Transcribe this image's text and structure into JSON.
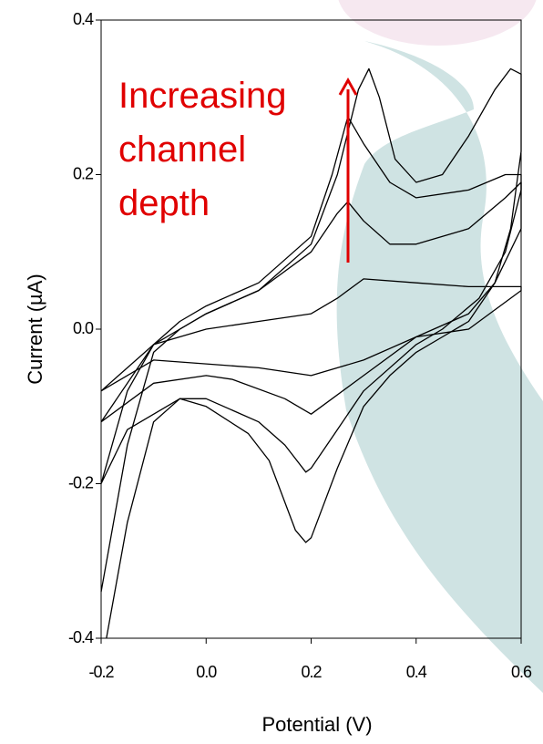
{
  "chart_data": {
    "type": "line",
    "xlabel": "Potential (V)",
    "ylabel": "Current (µA)",
    "annotation": [
      "Increasing",
      "channel",
      "depth"
    ],
    "xlim": [
      -0.2,
      0.6
    ],
    "ylim": [
      -0.4,
      0.4
    ],
    "xticks": [
      -0.2,
      {
        "value": 0,
        "label": "0.0"
      },
      0.2,
      0.4,
      0.6
    ],
    "yticks": [
      -0.4,
      -0.2,
      {
        "value": 0,
        "label": "0.0"
      },
      0.2,
      0.4
    ],
    "series": [
      {
        "color": "#000000",
        "x": [
          -0.2,
          -0.15,
          -0.1,
          -0.05,
          0.0,
          0.1,
          0.2,
          0.25,
          0.29,
          0.31,
          0.33,
          0.36,
          0.4,
          0.45,
          0.5,
          0.55,
          0.58,
          0.6,
          0.6,
          0.58,
          0.55,
          0.5,
          0.45,
          0.4,
          0.35,
          0.3,
          0.25,
          0.2,
          0.19,
          0.17,
          0.12,
          0.08,
          0.0,
          -0.05,
          -0.1,
          -0.15,
          -0.19
        ],
        "values": [
          -0.34,
          -0.15,
          -0.03,
          0.0,
          0.02,
          0.05,
          0.11,
          0.2,
          0.31,
          0.337,
          0.3,
          0.22,
          0.19,
          0.2,
          0.25,
          0.31,
          0.337,
          0.33,
          0.23,
          0.13,
          0.06,
          0.01,
          -0.01,
          -0.03,
          -0.06,
          -0.1,
          -0.18,
          -0.27,
          -0.276,
          -0.26,
          -0.17,
          -0.135,
          -0.1,
          -0.09,
          -0.12,
          -0.25,
          -0.4
        ]
      },
      {
        "color": "#000000",
        "x": [
          -0.2,
          -0.15,
          -0.1,
          -0.05,
          0.0,
          0.1,
          0.2,
          0.24,
          0.27,
          0.3,
          0.35,
          0.4,
          0.5,
          0.57,
          0.6,
          0.6,
          0.57,
          0.52,
          0.45,
          0.4,
          0.3,
          0.25,
          0.2,
          0.19,
          0.15,
          0.1,
          0.0,
          -0.05,
          -0.15,
          -0.2
        ],
        "values": [
          -0.2,
          -0.08,
          -0.02,
          0.01,
          0.03,
          0.06,
          0.12,
          0.2,
          0.275,
          0.24,
          0.19,
          0.17,
          0.18,
          0.2,
          0.2,
          0.18,
          0.1,
          0.04,
          0.0,
          -0.02,
          -0.08,
          -0.13,
          -0.18,
          -0.185,
          -0.15,
          -0.12,
          -0.09,
          -0.09,
          -0.13,
          -0.2
        ]
      },
      {
        "color": "#000000",
        "x": [
          -0.2,
          -0.1,
          -0.05,
          0.0,
          0.1,
          0.2,
          0.25,
          0.27,
          0.3,
          0.35,
          0.4,
          0.5,
          0.57,
          0.6,
          0.6,
          0.55,
          0.5,
          0.4,
          0.3,
          0.2,
          0.15,
          0.05,
          0.0,
          -0.1,
          -0.2
        ],
        "values": [
          -0.12,
          -0.02,
          0.0,
          0.02,
          0.05,
          0.1,
          0.15,
          0.165,
          0.14,
          0.11,
          0.11,
          0.13,
          0.17,
          0.19,
          0.13,
          0.06,
          0.02,
          -0.01,
          -0.06,
          -0.11,
          -0.09,
          -0.065,
          -0.06,
          -0.07,
          -0.12
        ]
      },
      {
        "color": "#000000",
        "x": [
          -0.2,
          -0.1,
          0.0,
          0.1,
          0.2,
          0.25,
          0.3,
          0.4,
          0.5,
          0.6,
          0.6,
          0.5,
          0.4,
          0.3,
          0.2,
          0.1,
          0.0,
          -0.1,
          -0.2
        ],
        "values": [
          -0.08,
          -0.02,
          0.0,
          0.01,
          0.02,
          0.04,
          0.065,
          0.06,
          0.055,
          0.055,
          0.05,
          0.0,
          -0.01,
          -0.04,
          -0.06,
          -0.05,
          -0.045,
          -0.04,
          -0.08
        ]
      }
    ]
  }
}
